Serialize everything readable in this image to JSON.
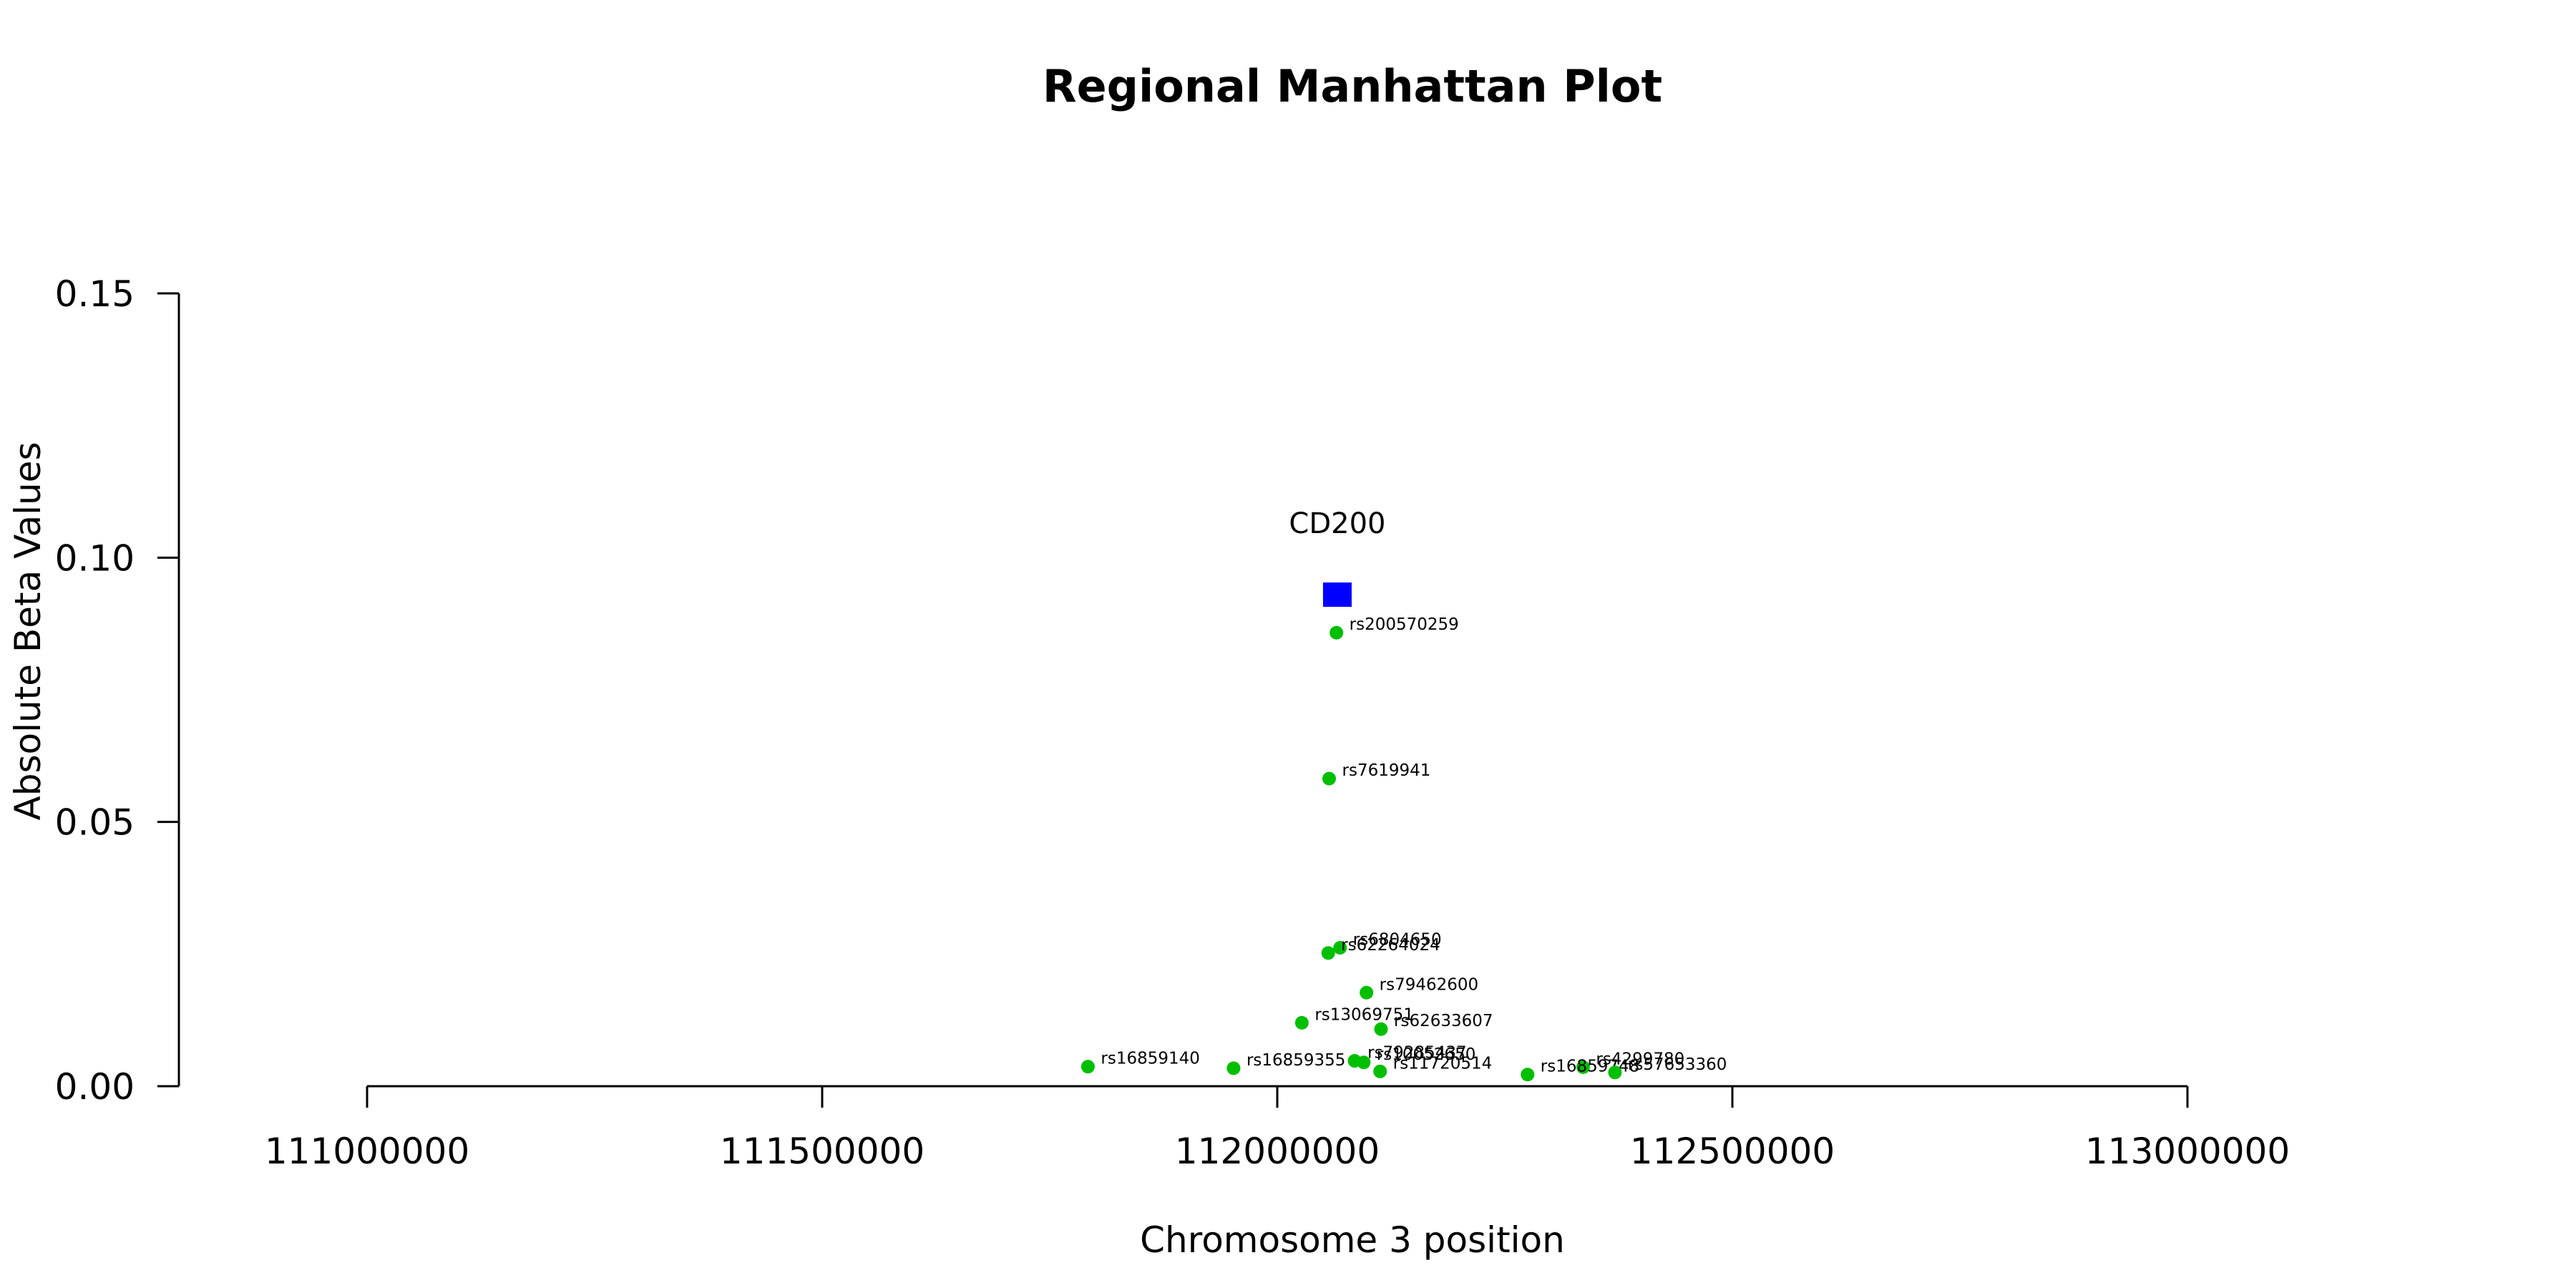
{
  "chart_data": {
    "type": "scatter",
    "title": "Regional Manhattan Plot",
    "xlabel": "Chromosome 3 position",
    "ylabel": "Absolute Beta Values",
    "xlim": [
      111000000,
      113000000
    ],
    "ylim": [
      0,
      0.15
    ],
    "xticks": [
      111000000,
      111500000,
      112000000,
      112500000,
      113000000
    ],
    "yticks": [
      "0.00",
      "0.05",
      "0.10",
      "0.15"
    ],
    "grid": false,
    "legend": "none",
    "colors": {
      "snp": "#00bf00",
      "gene": "#0000ff"
    },
    "gene": {
      "name": "CD200",
      "x": 112066000,
      "y": 0.093
    },
    "series": [
      {
        "points": [
          {
            "label": "rs200570259",
            "x": 112065000,
            "y": 0.0858
          },
          {
            "label": "rs7619941",
            "x": 112057000,
            "y": 0.0582
          },
          {
            "label": "rs6804650",
            "x": 112069000,
            "y": 0.0262
          },
          {
            "label": "rs62264024",
            "x": 112056000,
            "y": 0.0252
          },
          {
            "label": "rs79462600",
            "x": 112098000,
            "y": 0.0177
          },
          {
            "label": "rs13069751",
            "x": 112027000,
            "y": 0.012
          },
          {
            "label": "rs62633607",
            "x": 112114000,
            "y": 0.0108
          },
          {
            "label": "rs79285437",
            "x": 112085000,
            "y": 0.0048
          },
          {
            "label": "rs10052650",
            "x": 112095000,
            "y": 0.0045
          },
          {
            "label": "rs16859140",
            "x": 111792000,
            "y": 0.0037
          },
          {
            "label": "rs16859355",
            "x": 111952000,
            "y": 0.0034
          },
          {
            "label": "rs11720514",
            "x": 112113000,
            "y": 0.0028
          },
          {
            "label": "rs4299780",
            "x": 112336000,
            "y": 0.0036
          },
          {
            "label": "rs16859748",
            "x": 112275000,
            "y": 0.0022
          },
          {
            "label": "rs57653360",
            "x": 112371000,
            "y": 0.0026
          }
        ]
      }
    ]
  }
}
